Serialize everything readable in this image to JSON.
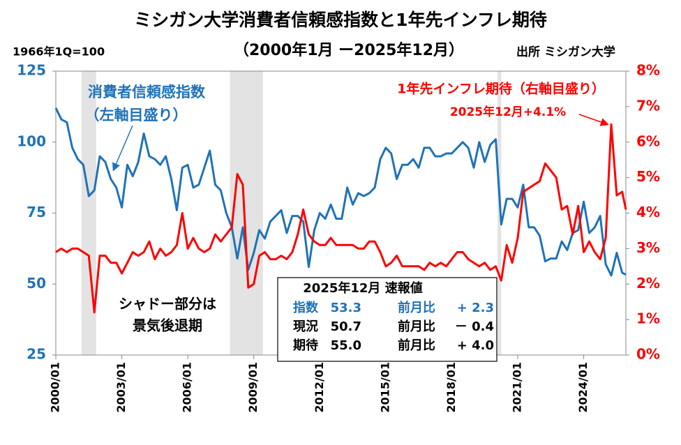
{
  "chart_data": {
    "type": "line",
    "title": "ミシガン大学消費者信頼感指数と1年先インフレ期待",
    "subtitle": "（2000年1月 ー2025年12月）",
    "base_note": "1966年1Q=100",
    "source": "出所 ミシガン大学",
    "series_note": "（左軸目盛り）",
    "peak_note": "2025年12月+4.1%",
    "shade_note": [
      "シャドー部分は",
      "景気後退期"
    ],
    "recessions": [
      [
        "2001/03",
        "2001/11"
      ],
      [
        "2007/12",
        "2009/06"
      ],
      [
        "2020/02",
        "2020/04"
      ]
    ],
    "box": {
      "title": "2025年12月  速報値",
      "rows": [
        [
          "指数",
          "53.3",
          "前月比",
          "+ 2.3"
        ],
        [
          "現況",
          "50.7",
          "前月比",
          "－ 0.4"
        ],
        [
          "期待",
          "55.0",
          "前月比",
          "+ 4.0"
        ]
      ]
    },
    "x": [
      "2000/01",
      "2000/04",
      "2000/07",
      "2000/10",
      "2001/01",
      "2001/04",
      "2001/07",
      "2001/10",
      "2002/01",
      "2002/04",
      "2002/07",
      "2002/10",
      "2003/01",
      "2003/04",
      "2003/07",
      "2003/10",
      "2004/01",
      "2004/04",
      "2004/07",
      "2004/10",
      "2005/01",
      "2005/04",
      "2005/07",
      "2005/10",
      "2006/01",
      "2006/04",
      "2006/07",
      "2006/10",
      "2007/01",
      "2007/04",
      "2007/07",
      "2007/10",
      "2008/01",
      "2008/04",
      "2008/07",
      "2008/10",
      "2009/01",
      "2009/04",
      "2009/07",
      "2009/10",
      "2010/01",
      "2010/04",
      "2010/07",
      "2010/10",
      "2011/01",
      "2011/04",
      "2011/07",
      "2011/10",
      "2012/01",
      "2012/04",
      "2012/07",
      "2012/10",
      "2013/01",
      "2013/04",
      "2013/07",
      "2013/10",
      "2014/01",
      "2014/04",
      "2014/07",
      "2014/10",
      "2015/01",
      "2015/04",
      "2015/07",
      "2015/10",
      "2016/01",
      "2016/04",
      "2016/07",
      "2016/10",
      "2017/01",
      "2017/04",
      "2017/07",
      "2017/10",
      "2018/01",
      "2018/04",
      "2018/07",
      "2018/10",
      "2019/01",
      "2019/04",
      "2019/07",
      "2019/10",
      "2020/01",
      "2020/04",
      "2020/07",
      "2020/10",
      "2021/01",
      "2021/04",
      "2021/07",
      "2021/10",
      "2022/01",
      "2022/04",
      "2022/07",
      "2022/10",
      "2023/01",
      "2023/04",
      "2023/07",
      "2023/10",
      "2024/01",
      "2024/04",
      "2024/07",
      "2024/10",
      "2025/01",
      "2025/04",
      "2025/07",
      "2025/10",
      "2025/12"
    ],
    "xlim": [
      "2000/01",
      "2025/12"
    ],
    "xticks": [
      "2000/01",
      "2003/01",
      "2006/01",
      "2009/01",
      "2012/01",
      "2015/01",
      "2018/01",
      "2021/01",
      "2024/01"
    ],
    "ylim": [
      25,
      125
    ],
    "yticks": [
      25,
      50,
      75,
      100,
      125
    ],
    "y2lim": [
      0,
      8
    ],
    "y2ticks": [
      {
        "value": 0,
        "label": "0%"
      },
      {
        "value": 1,
        "label": "1%"
      },
      {
        "value": 2,
        "label": "2%"
      },
      {
        "value": 3,
        "label": "3%"
      },
      {
        "value": 4,
        "label": "4%"
      },
      {
        "value": 5,
        "label": "5%"
      },
      {
        "value": 6,
        "label": "6%"
      },
      {
        "value": 7,
        "label": "7%"
      },
      {
        "value": 8,
        "label": "8%"
      }
    ],
    "series": [
      {
        "name": "消費者信頼感指数",
        "color": "#1f72b8",
        "axis": "y",
        "values": [
          112,
          108,
          107,
          98,
          94,
          92,
          81,
          83,
          95,
          93,
          87,
          84,
          77,
          92,
          88,
          93,
          103,
          95,
          94,
          92,
          95,
          87,
          76,
          91,
          92,
          84,
          85,
          91,
          97,
          85,
          83,
          75,
          70,
          59,
          70,
          55,
          61,
          69,
          66,
          72,
          74,
          76,
          68,
          74,
          74,
          72,
          56,
          69,
          75,
          73,
          78,
          73,
          73,
          84,
          78,
          82,
          81,
          82,
          84,
          94,
          98,
          96,
          87,
          92,
          92,
          94,
          91,
          98,
          98,
          95,
          95,
          96,
          96,
          98,
          100,
          98,
          91,
          100,
          93,
          99,
          101,
          71,
          80,
          80,
          77,
          85,
          70,
          70,
          67,
          58,
          59,
          59,
          65,
          62,
          68,
          69,
          79,
          68,
          70,
          74,
          57,
          53,
          61,
          54,
          53.3
        ]
      },
      {
        "name": "1年先インフレ期待（右軸目盛り）",
        "color": "#ff0000",
        "axis": "y2",
        "values": [
          2.9,
          3.0,
          2.9,
          3.0,
          3.0,
          2.9,
          2.8,
          1.2,
          2.8,
          2.8,
          2.6,
          2.6,
          2.3,
          2.6,
          2.9,
          2.8,
          2.9,
          3.2,
          2.7,
          3.0,
          2.8,
          2.9,
          3.1,
          4.0,
          3.0,
          3.3,
          3.0,
          2.9,
          3.0,
          3.4,
          3.2,
          3.4,
          3.6,
          5.1,
          4.8,
          1.9,
          2.0,
          2.8,
          2.9,
          2.7,
          2.7,
          2.8,
          2.7,
          2.9,
          3.4,
          4.1,
          3.4,
          3.2,
          3.1,
          3.1,
          3.3,
          3.1,
          3.1,
          3.1,
          3.1,
          3.0,
          3.0,
          3.2,
          3.2,
          2.9,
          2.5,
          2.6,
          2.8,
          2.5,
          2.5,
          2.5,
          2.5,
          2.4,
          2.6,
          2.5,
          2.6,
          2.5,
          2.7,
          2.9,
          2.9,
          2.7,
          2.6,
          2.5,
          2.6,
          2.4,
          2.5,
          2.1,
          3.1,
          2.6,
          3.3,
          4.6,
          4.7,
          4.8,
          4.9,
          5.4,
          5.2,
          5.0,
          4.1,
          4.2,
          3.4,
          4.2,
          2.9,
          3.2,
          2.9,
          2.7,
          3.3,
          6.5,
          4.5,
          4.6,
          4.1
        ]
      }
    ]
  }
}
